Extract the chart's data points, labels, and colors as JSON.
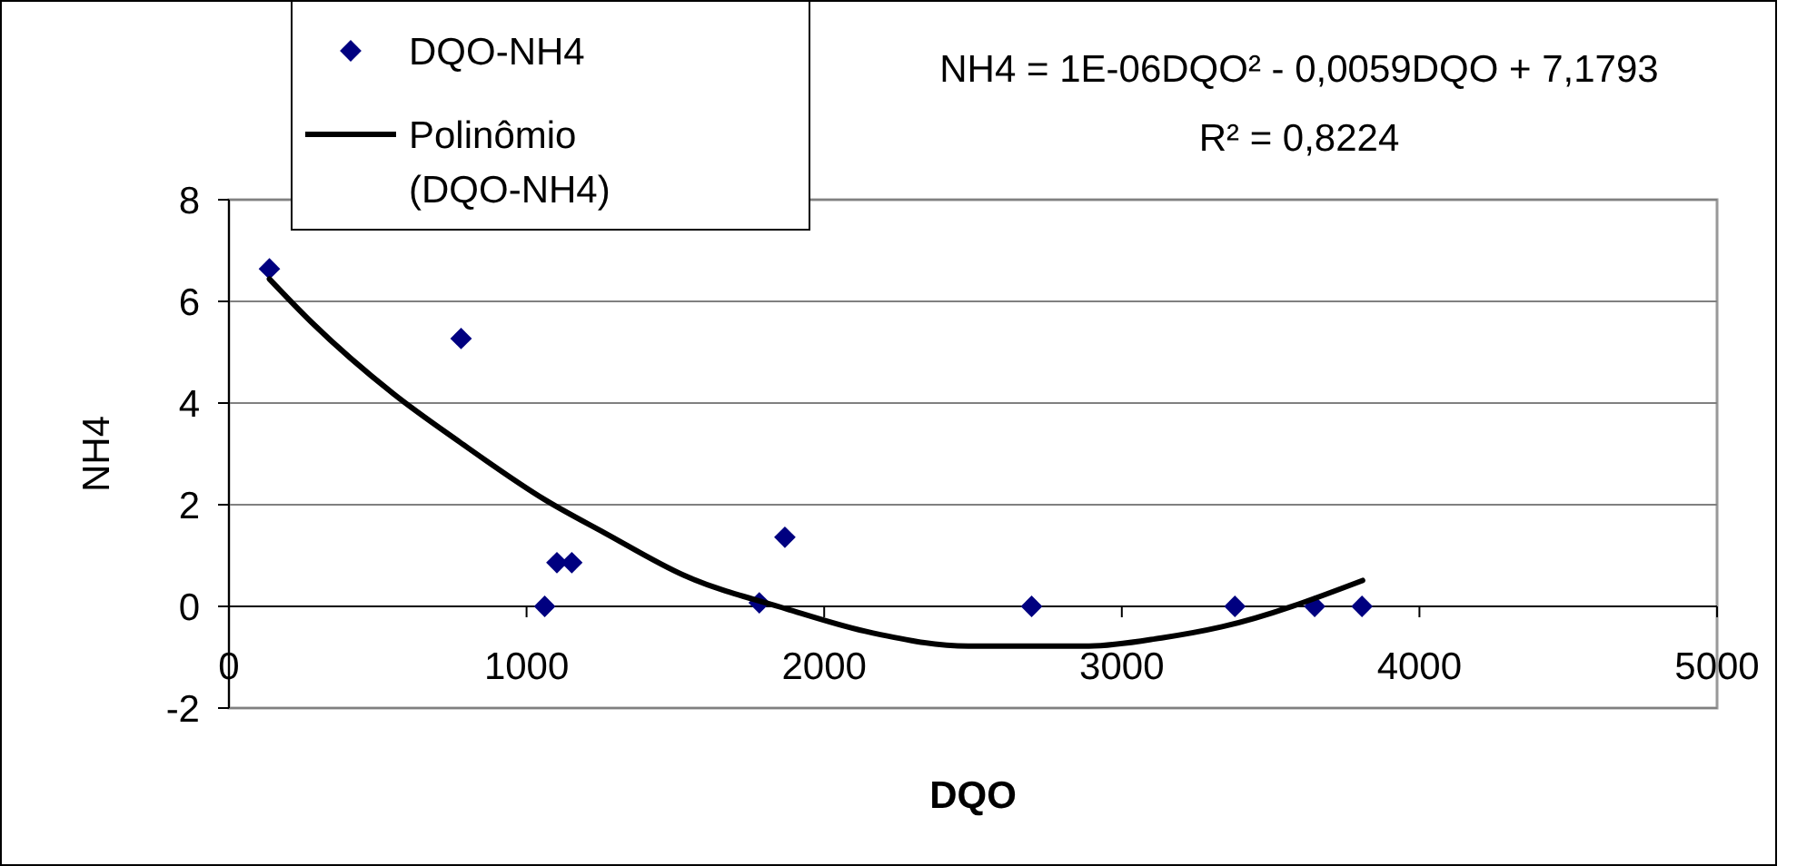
{
  "chart_data": {
    "type": "scatter",
    "xlabel": "DQO",
    "ylabel": "NH4",
    "annotations": [
      "NH4 = 1E-06DQO² - 0,0059DQO + 7,1793",
      "R² = 0,8224"
    ],
    "xlim": [
      0,
      5000
    ],
    "xticks": [
      0,
      1000,
      2000,
      3000,
      4000,
      5000
    ],
    "ylim": [
      -2,
      8
    ],
    "yticks": [
      -2,
      0,
      2,
      4,
      6,
      8
    ],
    "grid": "y",
    "legend": "top left",
    "marker": "diamond",
    "series": [
      {
        "name": "DQO-NH4",
        "color": "#000080",
        "x": [
          136,
          780,
          1061,
          1102,
          1152,
          1782,
          1868,
          2697,
          3380,
          3648,
          3807
        ],
        "values": [
          6.64,
          5.27,
          0,
          0.86,
          0.86,
          0.07,
          1.36,
          0,
          0,
          0,
          0
        ]
      },
      {
        "name": "Polinômio (DQO-NH4)",
        "type": "line",
        "color": "#000000",
        "marker": "none",
        "line_style": "solid",
        "x": [
          136,
          279,
          553,
          776,
          1061,
          1264,
          1529,
          1874,
          2138,
          2484,
          2890,
          3134,
          3337,
          3809
        ],
        "values": [
          6.44,
          5.58,
          4.18,
          3.23,
          2.1,
          1.44,
          0.61,
          -0.05,
          -0.49,
          -0.78,
          -0.78,
          -0.62,
          -0.4,
          0.51
        ]
      }
    ]
  }
}
